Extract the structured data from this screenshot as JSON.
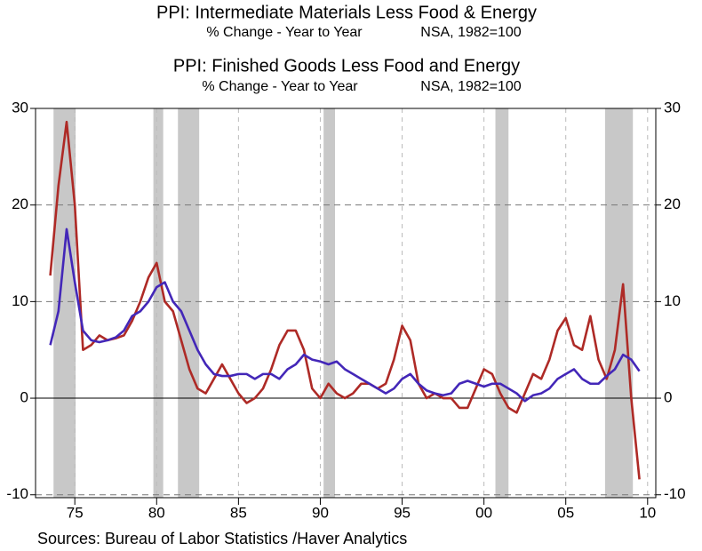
{
  "chart_data": {
    "type": "line",
    "source": "Sources:  Bureau of Labor Statistics /Haver Analytics",
    "x": [
      1973.5,
      1974,
      1974.5,
      1975,
      1975.5,
      1976,
      1976.5,
      1977,
      1977.5,
      1978,
      1978.5,
      1979,
      1979.5,
      1980,
      1980.5,
      1981,
      1981.5,
      1982,
      1982.5,
      1983,
      1983.5,
      1984,
      1984.5,
      1985,
      1985.5,
      1986,
      1986.5,
      1987,
      1987.5,
      1988,
      1988.5,
      1989,
      1989.5,
      1990,
      1990.5,
      1991,
      1991.5,
      1992,
      1992.5,
      1993,
      1993.5,
      1994,
      1994.5,
      1995,
      1995.5,
      1996,
      1996.5,
      1997,
      1997.5,
      1998,
      1998.5,
      1999,
      1999.5,
      2000,
      2000.5,
      2001,
      2001.5,
      2002,
      2002.5,
      2003,
      2003.5,
      2004,
      2004.5,
      2005,
      2005.5,
      2006,
      2006.5,
      2007,
      2007.5,
      2008,
      2008.5,
      2009,
      2009.5
    ],
    "series": [
      {
        "name": "PPI: Intermediate Materials Less Food & Energy",
        "subtitle": "% Change - Year to Year",
        "note": "NSA, 1982=100",
        "color": "#ae2a26",
        "values": [
          12.7,
          22,
          28.6,
          20,
          5,
          5.5,
          6.5,
          6,
          6.2,
          6.5,
          8,
          10,
          12.5,
          14,
          10,
          9,
          6,
          3,
          1,
          0.5,
          2,
          3.5,
          2,
          0.5,
          -0.5,
          0,
          1,
          3,
          5.5,
          7,
          7,
          5,
          1,
          0,
          1.5,
          0.5,
          0,
          0.5,
          1.5,
          1.5,
          1,
          1.5,
          4,
          7.5,
          6,
          1.5,
          0,
          0.5,
          0,
          0,
          -1,
          -1,
          1,
          3,
          2.5,
          0.5,
          -1,
          -1.5,
          0.5,
          2.5,
          2,
          4,
          7,
          8.3,
          5.5,
          5,
          8.5,
          4,
          2,
          5,
          11.8,
          0,
          -8.4
        ]
      },
      {
        "name": "PPI: Finished Goods Less Food and Energy",
        "subtitle": "% Change - Year to Year",
        "note": "NSA, 1982=100",
        "color": "#4327b8",
        "values": [
          5.5,
          9,
          17.5,
          12,
          7,
          6,
          5.8,
          6,
          6.3,
          7,
          8.5,
          9,
          10,
          11.5,
          12,
          10,
          9,
          7,
          5,
          3.5,
          2.5,
          2.3,
          2.3,
          2.5,
          2.5,
          2,
          2.5,
          2.5,
          2,
          3,
          3.5,
          4.5,
          4,
          3.8,
          3.5,
          3.8,
          3,
          2.5,
          2,
          1.5,
          1,
          0.5,
          1,
          2,
          2.5,
          1.5,
          0.8,
          0.5,
          0.3,
          0.5,
          1.5,
          1.8,
          1.5,
          1.2,
          1.5,
          1.5,
          1,
          0.5,
          -0.3,
          0.3,
          0.5,
          1,
          2,
          2.5,
          3,
          2,
          1.5,
          1.5,
          2.3,
          3,
          4.5,
          4,
          2.8
        ]
      }
    ],
    "shaded_regions": [
      [
        1973.7,
        1975.05
      ],
      [
        1979.8,
        1980.4
      ],
      [
        1981.3,
        1982.6
      ],
      [
        1990.2,
        1990.9
      ],
      [
        2000.7,
        2001.5
      ],
      [
        2007.4,
        2009.1
      ]
    ],
    "shade_color": "#c8c8c8",
    "xlim": [
      1972.6,
      2010.5
    ],
    "xticks": [
      {
        "value": 1975,
        "label": "75"
      },
      {
        "value": 1980,
        "label": "80"
      },
      {
        "value": 1985,
        "label": "85"
      },
      {
        "value": 1990,
        "label": "90"
      },
      {
        "value": 1995,
        "label": "95"
      },
      {
        "value": 2000,
        "label": "00"
      },
      {
        "value": 2005,
        "label": "05"
      },
      {
        "value": 2010,
        "label": "10"
      }
    ],
    "ylim": [
      -10.3,
      30
    ],
    "yticks": [
      -10,
      0,
      10,
      20,
      30
    ],
    "y2lim": [
      -10.3,
      30
    ],
    "y2ticks": [
      -10,
      0,
      10,
      20,
      30
    ],
    "grid": true
  }
}
